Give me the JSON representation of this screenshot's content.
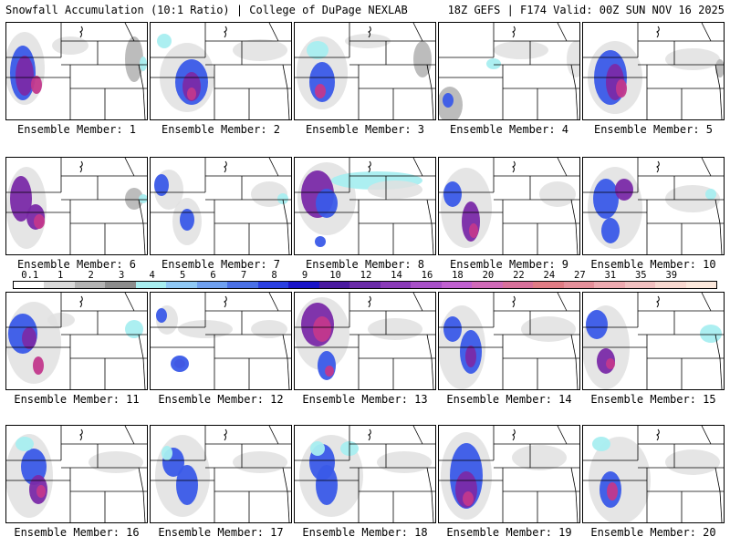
{
  "header": {
    "title": "Snowfall Accumulation (10:1 Ratio) | College of DuPage NEXLAB",
    "run_info": "18Z GEFS | F174 Valid: 00Z SUN NOV 16 2025"
  },
  "panels": [
    {
      "label": "Ensemble Member: 1"
    },
    {
      "label": "Ensemble Member: 2"
    },
    {
      "label": "Ensemble Member: 3"
    },
    {
      "label": "Ensemble Member: 4"
    },
    {
      "label": "Ensemble Member: 5"
    },
    {
      "label": "Ensemble Member: 6"
    },
    {
      "label": "Ensemble Member: 7"
    },
    {
      "label": "Ensemble Member: 8"
    },
    {
      "label": "Ensemble Member: 9"
    },
    {
      "label": "Ensemble Member: 10"
    },
    {
      "label": "Ensemble Member: 11"
    },
    {
      "label": "Ensemble Member: 12"
    },
    {
      "label": "Ensemble Member: 13"
    },
    {
      "label": "Ensemble Member: 14"
    },
    {
      "label": "Ensemble Member: 15"
    },
    {
      "label": "Ensemble Member: 16"
    },
    {
      "label": "Ensemble Member: 17"
    },
    {
      "label": "Ensemble Member: 18"
    },
    {
      "label": "Ensemble Member: 19"
    },
    {
      "label": "Ensemble Member: 20"
    }
  ],
  "colorbar": {
    "labels": [
      "0.1",
      "1",
      "2",
      "3",
      "4",
      "5",
      "6",
      "7",
      "8",
      "9",
      "10",
      "12",
      "14",
      "16",
      "18",
      "20",
      "22",
      "24",
      "27",
      "31",
      "35",
      "39"
    ],
    "colors": [
      "#ffffff",
      "#d9d9d9",
      "#b3b3b3",
      "#8c8c8c",
      "#a8eef0",
      "#8fc8f5",
      "#6fa0f0",
      "#4a70e6",
      "#2a3fe0",
      "#1a14c8",
      "#4a1aa0",
      "#6a2aa8",
      "#8a3ab8",
      "#a850c8",
      "#c060d0",
      "#d06ab8",
      "#d8709a",
      "#e07c84",
      "#e6909a",
      "#eeaab0",
      "#f2c0c0",
      "#f8d8d0",
      "#fce8dc"
    ]
  },
  "map_colors": {
    "light_gray": "#e0e0e0",
    "mid_gray": "#b8b8b8",
    "dark_gray": "#8a8a8a",
    "cyan": "#a8eef0",
    "blue": "#3a5ae8",
    "purple": "#7a2aa8",
    "magenta": "#c2388c"
  }
}
